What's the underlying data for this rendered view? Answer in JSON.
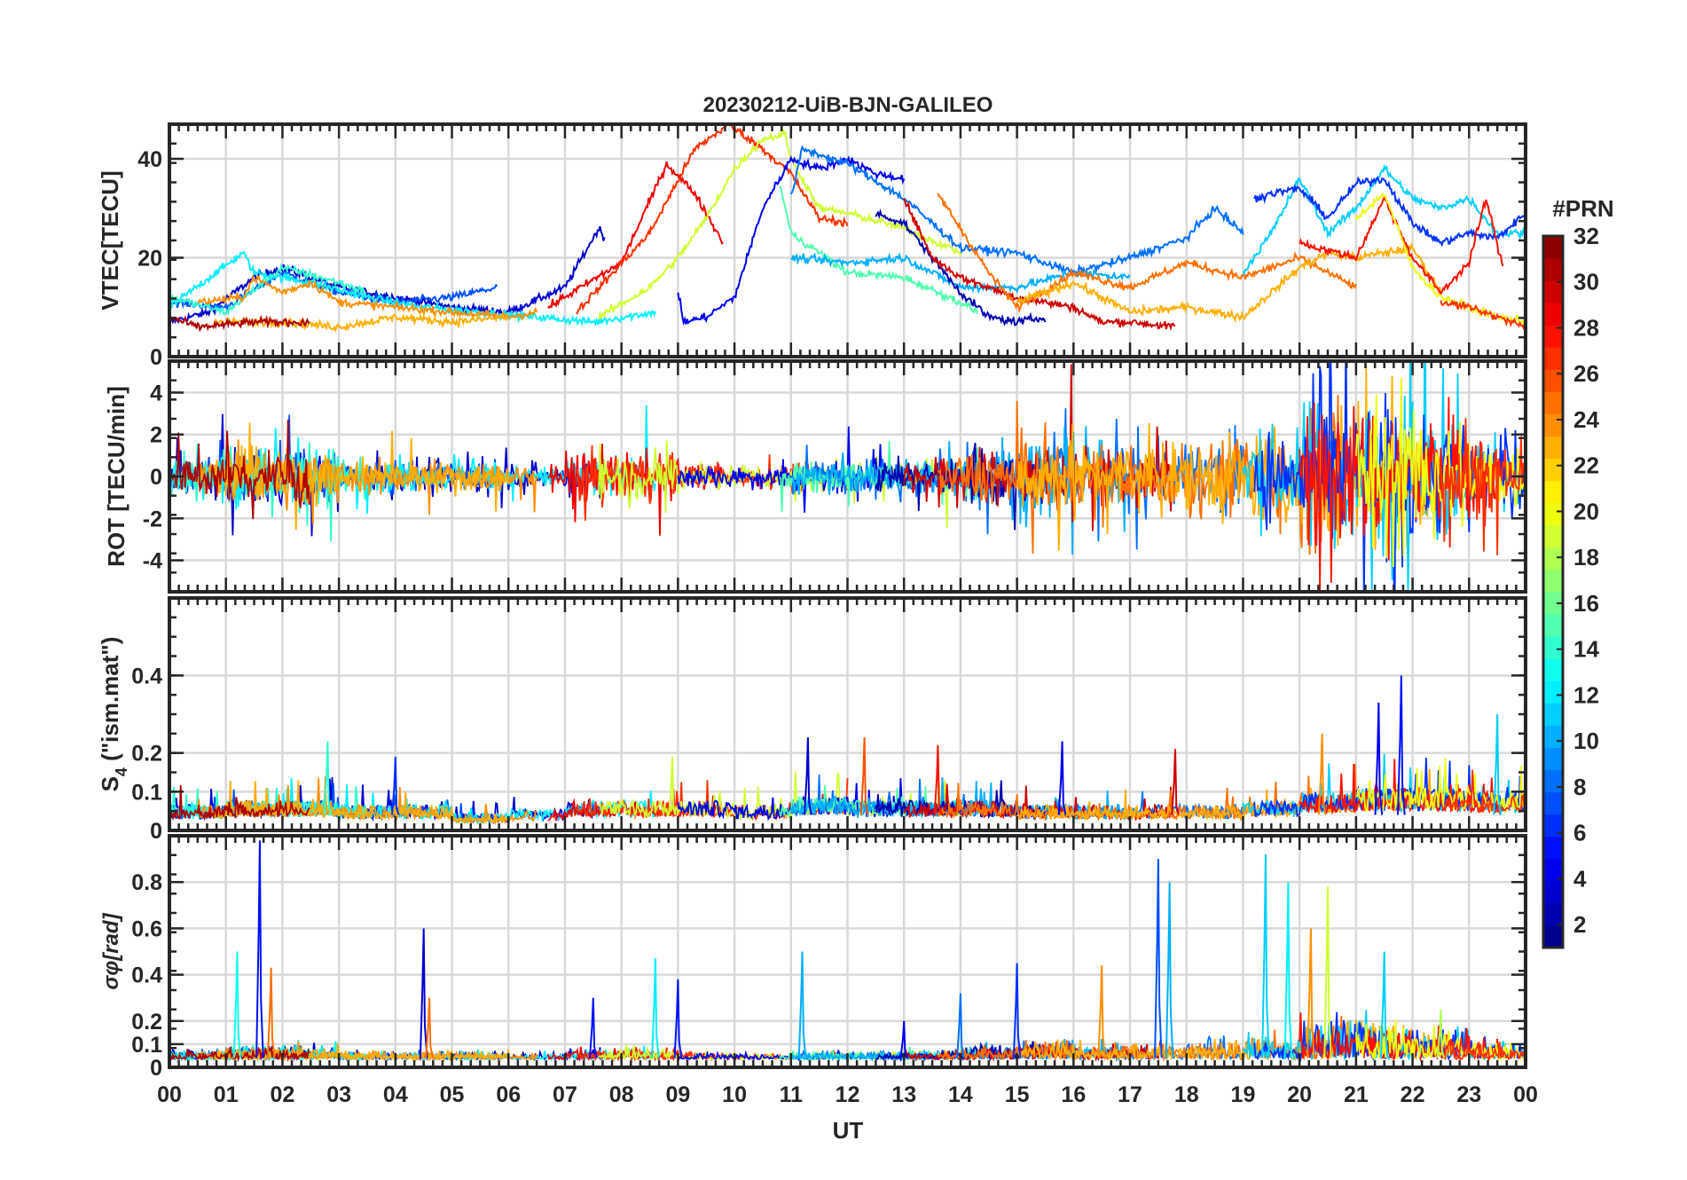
{
  "chart_data": {
    "type": "line",
    "title": "20230212-UiB-BJN-GALILEO",
    "xlabel": "UT",
    "xlim": [
      0,
      24
    ],
    "xtick_labels": [
      "00",
      "01",
      "02",
      "03",
      "04",
      "05",
      "06",
      "07",
      "08",
      "09",
      "10",
      "11",
      "12",
      "13",
      "14",
      "15",
      "16",
      "17",
      "18",
      "19",
      "20",
      "21",
      "22",
      "23",
      "00"
    ],
    "colorbar": {
      "label": "#PRN",
      "range": [
        1,
        32
      ],
      "colormap": "jet",
      "levels": 32,
      "tick_labels": [
        "2",
        "4",
        "6",
        "8",
        "10",
        "12",
        "14",
        "16",
        "18",
        "20",
        "22",
        "24",
        "26",
        "28",
        "30",
        "32"
      ]
    },
    "panels": [
      {
        "ylabel": "VTEC[TECU]",
        "ylim": [
          0,
          47
        ],
        "yticks": [
          0,
          20,
          40
        ],
        "ytick_labels": [
          "0",
          "20",
          "40"
        ]
      },
      {
        "ylabel": "ROT [TECU/min]",
        "ylim": [
          -5.5,
          5.5
        ],
        "yticks": [
          -4,
          -2,
          0,
          2,
          4
        ],
        "ytick_labels": [
          "-4",
          "-2",
          "0",
          "2",
          "4"
        ]
      },
      {
        "ylabel": "S4 (\"ism.mat\")",
        "ylabel_main": "S",
        "ylabel_sub": "4",
        "ylabel_rest": " (\"ism.mat\")",
        "ylim": [
          0,
          0.6
        ],
        "yticks": [
          0,
          0.1,
          0.2,
          0.4
        ],
        "ytick_labels": [
          "0",
          "0.1",
          "0.2",
          "0.4"
        ]
      },
      {
        "ylabel": "σφ[rad]",
        "ylabel_main": "σ",
        "ylabel_sub": "φ",
        "ylabel_rest": "[rad]",
        "ylim": [
          0,
          1.0
        ],
        "yticks": [
          0,
          0.1,
          0.2,
          0.4,
          0.6,
          0.8
        ],
        "ytick_labels": [
          "0",
          "0.1",
          "0.2",
          "0.4",
          "0.6",
          "0.8"
        ]
      }
    ],
    "vtec_tracks": [
      {
        "prn": 3,
        "points": [
          [
            0,
            7
          ],
          [
            0.7,
            9
          ],
          [
            1.5,
            16
          ],
          [
            2,
            18
          ],
          [
            3,
            14
          ],
          [
            4,
            12
          ],
          [
            5,
            10
          ],
          [
            6,
            9
          ],
          [
            7,
            14
          ],
          [
            7.6,
            26
          ],
          [
            7.7,
            24
          ]
        ]
      },
      {
        "prn": 7,
        "points": [
          [
            0,
            11
          ],
          [
            1,
            10
          ],
          [
            2,
            17
          ],
          [
            3,
            13
          ],
          [
            4,
            11
          ],
          [
            5,
            12
          ],
          [
            5.8,
            14
          ]
        ]
      },
      {
        "prn": 12,
        "points": [
          [
            0,
            10
          ],
          [
            1.3,
            21
          ],
          [
            1.5,
            17
          ],
          [
            2.5,
            15
          ],
          [
            3.5,
            12
          ],
          [
            4.5,
            10
          ],
          [
            5.5,
            9
          ],
          [
            6.5,
            8
          ],
          [
            7.5,
            7
          ],
          [
            8.6,
            9
          ]
        ]
      },
      {
        "prn": 14,
        "points": [
          [
            0,
            12
          ],
          [
            1,
            9
          ],
          [
            2,
            18
          ],
          [
            3,
            15
          ],
          [
            3.5,
            13
          ]
        ]
      },
      {
        "prn": 24,
        "points": [
          [
            0.5,
            11
          ],
          [
            1.3,
            12
          ],
          [
            1.5,
            16
          ],
          [
            2,
            13
          ],
          [
            2.5,
            15
          ],
          [
            3,
            11
          ],
          [
            4,
            10
          ],
          [
            5,
            9
          ],
          [
            6,
            8
          ],
          [
            6.5,
            9
          ]
        ]
      },
      {
        "prn": 23,
        "points": [
          [
            0.8,
            7
          ],
          [
            2,
            7
          ],
          [
            3,
            6
          ],
          [
            4,
            8
          ],
          [
            5,
            7
          ],
          [
            6,
            8
          ]
        ]
      },
      {
        "prn": 31,
        "points": [
          [
            0,
            8
          ],
          [
            0.5,
            6
          ],
          [
            1.5,
            7
          ],
          [
            2.5,
            7
          ]
        ]
      },
      {
        "prn": 29,
        "points": [
          [
            6.7,
            10
          ],
          [
            8,
            19
          ],
          [
            8.8,
            39
          ],
          [
            9.3,
            33
          ],
          [
            9.8,
            23
          ]
        ]
      },
      {
        "prn": 27,
        "points": [
          [
            7.2,
            9
          ],
          [
            8.5,
            25
          ],
          [
            9.3,
            42
          ],
          [
            9.9,
            47
          ],
          [
            10.5,
            42
          ],
          [
            11,
            37
          ],
          [
            11.5,
            28
          ],
          [
            12,
            27
          ]
        ]
      },
      {
        "prn": 19,
        "points": [
          [
            7.6,
            8
          ],
          [
            8.5,
            14
          ],
          [
            9,
            20
          ],
          [
            9.5,
            28
          ],
          [
            10,
            38
          ],
          [
            10.5,
            44
          ],
          [
            10.9,
            45
          ],
          [
            11,
            40
          ],
          [
            11.5,
            30
          ],
          [
            12,
            29
          ],
          [
            13,
            26
          ],
          [
            14,
            21
          ]
        ]
      },
      {
        "prn": 4,
        "points": [
          [
            9,
            13
          ],
          [
            9.1,
            7
          ],
          [
            9.5,
            8
          ],
          [
            10,
            12
          ],
          [
            10.5,
            30
          ],
          [
            11,
            40
          ],
          [
            11.5,
            38
          ],
          [
            12,
            40
          ],
          [
            12.5,
            37
          ],
          [
            13,
            36
          ]
        ]
      },
      {
        "prn": 8,
        "points": [
          [
            11,
            32
          ],
          [
            11.2,
            42
          ],
          [
            12,
            39
          ],
          [
            13,
            32
          ],
          [
            14,
            22
          ],
          [
            15,
            21
          ],
          [
            16,
            17
          ],
          [
            17,
            20
          ],
          [
            18,
            24
          ],
          [
            18.5,
            30
          ],
          [
            19,
            25
          ]
        ]
      },
      {
        "prn": 15,
        "points": [
          [
            10.8,
            35
          ],
          [
            11,
            25
          ],
          [
            12,
            17
          ],
          [
            13,
            16
          ],
          [
            14,
            11
          ],
          [
            14.3,
            9
          ]
        ]
      },
      {
        "prn": 10,
        "points": [
          [
            11,
            20
          ],
          [
            12,
            19
          ],
          [
            13,
            20
          ],
          [
            14,
            14
          ],
          [
            15,
            14
          ],
          [
            16,
            17
          ],
          [
            17,
            16
          ]
        ]
      },
      {
        "prn": 2,
        "points": [
          [
            12.5,
            29
          ],
          [
            13,
            27
          ],
          [
            14,
            13
          ],
          [
            14.5,
            8
          ],
          [
            15,
            7
          ],
          [
            15.5,
            8
          ]
        ]
      },
      {
        "prn": 30,
        "points": [
          [
            13,
            32
          ],
          [
            13.5,
            20
          ],
          [
            14,
            16
          ],
          [
            15,
            12
          ],
          [
            16,
            10
          ],
          [
            16.5,
            7
          ],
          [
            17,
            7
          ],
          [
            17.8,
            6
          ]
        ]
      },
      {
        "prn": 25,
        "points": [
          [
            13.6,
            33
          ],
          [
            14.5,
            17
          ],
          [
            15,
            10
          ],
          [
            16,
            17
          ],
          [
            17,
            14
          ],
          [
            18,
            19
          ],
          [
            19,
            16
          ],
          [
            20,
            20
          ],
          [
            21,
            14
          ]
        ]
      },
      {
        "prn": 23,
        "points": [
          [
            15,
            11
          ],
          [
            16,
            15
          ],
          [
            17,
            9
          ],
          [
            18,
            10
          ],
          [
            19,
            8
          ],
          [
            20,
            18
          ],
          [
            20.5,
            21
          ],
          [
            21,
            20
          ],
          [
            22,
            22
          ],
          [
            22.5,
            13
          ]
        ]
      },
      {
        "prn": 11,
        "points": [
          [
            19,
            17
          ],
          [
            19.5,
            25
          ],
          [
            20,
            36
          ],
          [
            20.5,
            25
          ],
          [
            21,
            30
          ],
          [
            21.5,
            38
          ],
          [
            22,
            32
          ],
          [
            22.5,
            30
          ],
          [
            23,
            32
          ],
          [
            23.5,
            25
          ],
          [
            24,
            25
          ]
        ]
      },
      {
        "prn": 6,
        "points": [
          [
            19.2,
            32
          ],
          [
            19.5,
            33
          ],
          [
            20,
            34
          ],
          [
            20.5,
            28
          ],
          [
            21,
            35
          ],
          [
            21.5,
            36
          ],
          [
            22,
            27
          ],
          [
            22.5,
            23
          ],
          [
            23,
            25
          ],
          [
            23.5,
            24
          ],
          [
            24,
            29
          ]
        ]
      },
      {
        "prn": 28,
        "points": [
          [
            20,
            23
          ],
          [
            21,
            20
          ],
          [
            21.5,
            32
          ],
          [
            22,
            20
          ],
          [
            22.5,
            13
          ],
          [
            23,
            19
          ],
          [
            23.3,
            32
          ],
          [
            23.6,
            18
          ]
        ]
      },
      {
        "prn": 20,
        "points": [
          [
            21,
            28
          ],
          [
            21.5,
            33
          ],
          [
            22,
            18
          ],
          [
            22.5,
            12
          ],
          [
            23.5,
            8
          ],
          [
            24,
            7
          ]
        ]
      },
      {
        "prn": 27,
        "points": [
          [
            22.5,
            11
          ],
          [
            23,
            10
          ],
          [
            23.5,
            8
          ],
          [
            24,
            6
          ]
        ]
      }
    ],
    "rot_activity_by_hour": [
      1.2,
      1.8,
      1.8,
      1.0,
      1.0,
      1.0,
      0.8,
      1.5,
      1.5,
      0.8,
      0.8,
      1.0,
      1.0,
      1.2,
      1.8,
      2.5,
      2.0,
      2.0,
      2.5,
      3.0,
      5.0,
      5.0,
      4.0,
      2.5
    ],
    "s4_baseline_by_hour": [
      0.06,
      0.07,
      0.07,
      0.06,
      0.06,
      0.04,
      0.05,
      0.07,
      0.07,
      0.07,
      0.06,
      0.08,
      0.07,
      0.07,
      0.07,
      0.06,
      0.06,
      0.06,
      0.06,
      0.07,
      0.09,
      0.1,
      0.1,
      0.09
    ],
    "s4_spikes": [
      [
        21.8,
        0.4,
        5
      ],
      [
        21.4,
        0.33,
        4
      ],
      [
        23.5,
        0.3,
        11
      ],
      [
        11.3,
        0.24,
        3
      ],
      [
        12.3,
        0.24,
        26
      ],
      [
        15.8,
        0.23,
        4
      ],
      [
        17.8,
        0.21,
        30
      ],
      [
        20.4,
        0.25,
        24
      ],
      [
        2.8,
        0.23,
        14
      ],
      [
        8.9,
        0.19,
        19
      ],
      [
        13.6,
        0.22,
        28
      ],
      [
        4,
        0.19,
        6
      ]
    ],
    "sigma_phi_spikes": [
      [
        1.6,
        0.98,
        5
      ],
      [
        4.5,
        0.6,
        3
      ],
      [
        1.2,
        0.5,
        13
      ],
      [
        1.8,
        0.43,
        25
      ],
      [
        8.6,
        0.47,
        12
      ],
      [
        9,
        0.38,
        5
      ],
      [
        11.2,
        0.5,
        10
      ],
      [
        17.5,
        0.9,
        7
      ],
      [
        17.7,
        0.8,
        10
      ],
      [
        19.4,
        0.92,
        11
      ],
      [
        19.8,
        0.8,
        12
      ],
      [
        20.5,
        0.78,
        19
      ],
      [
        20.2,
        0.6,
        24
      ],
      [
        16.5,
        0.44,
        24
      ],
      [
        15,
        0.45,
        6
      ],
      [
        7.5,
        0.3,
        5
      ],
      [
        4.6,
        0.3,
        25
      ],
      [
        21.5,
        0.5,
        11
      ],
      [
        14,
        0.32,
        8
      ],
      [
        13,
        0.2,
        4
      ],
      [
        22.5,
        0.25,
        18
      ]
    ]
  }
}
